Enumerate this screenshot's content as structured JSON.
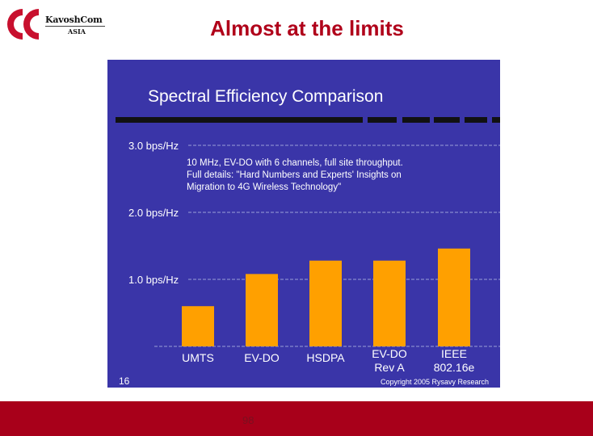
{
  "header": {
    "title": "Almost at the limits",
    "logo": {
      "brand": "KavoshCom",
      "sub": "ASIA"
    }
  },
  "colors": {
    "title_red": "#b0001a",
    "slide_blue": "#3a35a8",
    "bar_orange": "#ffa000",
    "footer_red": "#a8001a"
  },
  "chart_data": {
    "type": "bar",
    "title": "Spectral Efficiency Comparison",
    "categories": [
      [
        "UMTS"
      ],
      [
        "EV-DO"
      ],
      [
        "HSDPA"
      ],
      [
        "EV-DO",
        "Rev A"
      ],
      [
        "IEEE",
        "802.16e"
      ]
    ],
    "values": [
      0.6,
      1.08,
      1.28,
      1.28,
      1.46
    ],
    "yticks": [
      {
        "value": 1.0,
        "label": "1.0 bps/Hz"
      },
      {
        "value": 2.0,
        "label": "2.0 bps/Hz"
      },
      {
        "value": 3.0,
        "label": "3.0 bps/Hz"
      }
    ],
    "ylim": [
      0,
      3.0
    ],
    "note": [
      "10 MHz, EV-DO with 6 channels, full site throughput.",
      "Full details: \"Hard Numbers and  Experts' Insights on",
      "Migration to 4G Wireless Technology\""
    ],
    "slide_number": "16",
    "copyright": "Copyright 2005 Rysavy Research"
  },
  "footer": {
    "page_number": "98"
  }
}
